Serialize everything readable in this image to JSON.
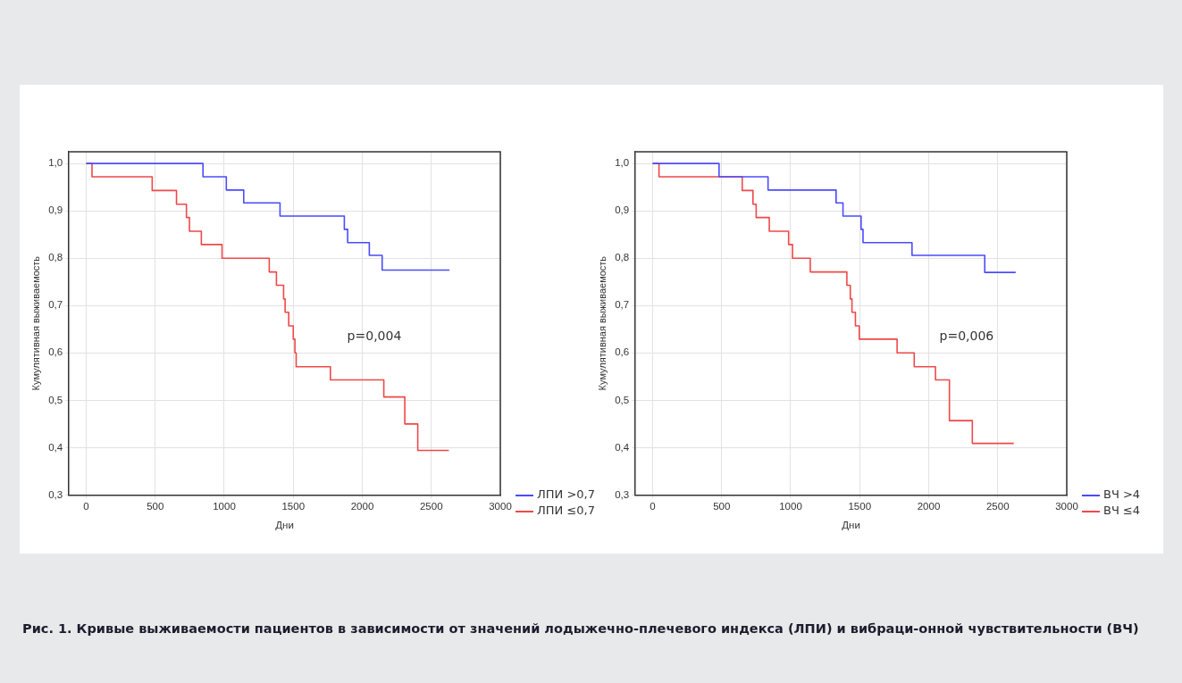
{
  "chart_data": [
    {
      "type": "step",
      "xlabel": "Дни",
      "ylabel": "Кумулятивная выживаемость",
      "xlim": [
        -125,
        3000
      ],
      "xticks": [
        0,
        500,
        1000,
        1500,
        2000,
        2500,
        3000
      ],
      "ylim": [
        0.3,
        1.025
      ],
      "yticks": [
        {
          "value": 0.3,
          "label": "0,3"
        },
        {
          "value": 0.4,
          "label": "0,4"
        },
        {
          "value": 0.5,
          "label": "0,5"
        },
        {
          "value": 0.6,
          "label": "0,6"
        },
        {
          "value": 0.7,
          "label": "0,7"
        },
        {
          "value": 0.8,
          "label": "0,8"
        },
        {
          "value": 0.9,
          "label": "0,9"
        },
        {
          "value": 1.0,
          "label": "1,0"
        }
      ],
      "grid": true,
      "legend": "bottom right",
      "marker": "none",
      "line_style": "solid",
      "series": [
        {
          "name": "ЛПИ >0,7",
          "color": "#4b4bff",
          "x": [
            0,
            846,
            1015,
            1141,
            1404,
            1870,
            1894,
            2051,
            2144,
            2632
          ],
          "values": [
            1,
            0.972,
            0.944,
            0.917,
            0.889,
            0.861,
            0.833,
            0.806,
            0.775,
            0.775
          ]
        },
        {
          "name": "ЛПИ ≤0,7",
          "color": "#f04848",
          "x": [
            0,
            42,
            478,
            654,
            726,
            748,
            834,
            984,
            1326,
            1378,
            1430,
            1441,
            1467,
            1500,
            1512,
            1521,
            1769,
            2156,
            2308,
            2402,
            2627
          ],
          "values": [
            1,
            0.972,
            0.943,
            0.914,
            0.886,
            0.857,
            0.829,
            0.8,
            0.771,
            0.743,
            0.714,
            0.686,
            0.657,
            0.629,
            0.6,
            0.571,
            0.543,
            0.507,
            0.45,
            0.394,
            0.394
          ]
        }
      ],
      "annotations": [
        "p=0,004",
        "Рис. 1. Кривые выживаемости пациентов в зависимости от значений лодыжечно-плечевого индекса (ЛПИ) и вибраци-онной чувствительности (ВЧ)"
      ]
    },
    {
      "type": "step",
      "xlabel": "Дни",
      "ylabel": "Кумулятивная выживаемость",
      "xlim": [
        -125,
        3000
      ],
      "xticks": [
        0,
        500,
        1000,
        1500,
        2000,
        2500,
        3000
      ],
      "ylim": [
        0.3,
        1.025
      ],
      "yticks": [
        {
          "value": 0.3,
          "label": "0,3"
        },
        {
          "value": 0.4,
          "label": "0,4"
        },
        {
          "value": 0.5,
          "label": "0,5"
        },
        {
          "value": 0.6,
          "label": "0,6"
        },
        {
          "value": 0.7,
          "label": "0,7"
        },
        {
          "value": 0.8,
          "label": "0,8"
        },
        {
          "value": 0.9,
          "label": "0,9"
        },
        {
          "value": 1.0,
          "label": "1,0"
        }
      ],
      "grid": true,
      "legend": "bottom right",
      "marker": "none",
      "line_style": "solid",
      "series": [
        {
          "name": "ВЧ >4",
          "color": "#4b4bff",
          "x": [
            0,
            481,
            836,
            1329,
            1379,
            1510,
            1524,
            1879,
            2406,
            2630
          ],
          "values": [
            1,
            0.972,
            0.944,
            0.917,
            0.889,
            0.861,
            0.833,
            0.806,
            0.77,
            0.77
          ]
        },
        {
          "name": "ВЧ ≤4",
          "color": "#f04848",
          "x": [
            0,
            46,
            649,
            727,
            750,
            845,
            985,
            1013,
            1142,
            1407,
            1432,
            1444,
            1469,
            1497,
            1771,
            1895,
            2049,
            2150,
            2316,
            2616
          ],
          "values": [
            1,
            0.972,
            0.943,
            0.914,
            0.886,
            0.857,
            0.829,
            0.8,
            0.771,
            0.743,
            0.714,
            0.686,
            0.657,
            0.629,
            0.6,
            0.571,
            0.543,
            0.457,
            0.409,
            0.409
          ]
        }
      ],
      "annotations": [
        "p=0,006"
      ]
    }
  ]
}
